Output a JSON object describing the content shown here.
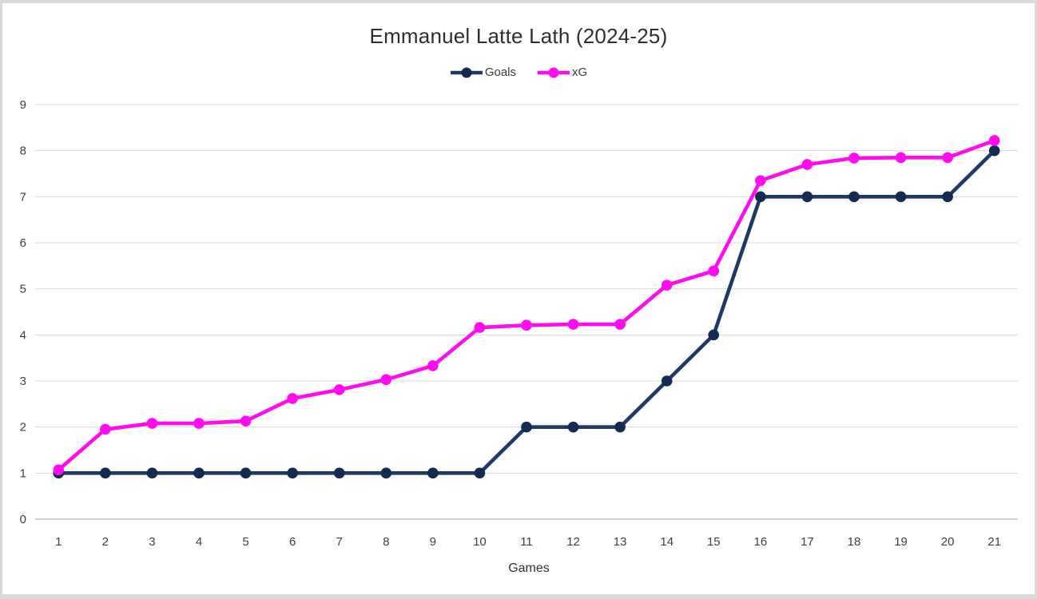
{
  "chart_data": {
    "type": "line",
    "title": "Emmanuel Latte Lath (2024-25)",
    "xlabel": "Games",
    "ylabel": "",
    "categories": [
      1,
      2,
      3,
      4,
      5,
      6,
      7,
      8,
      9,
      10,
      11,
      12,
      13,
      14,
      15,
      16,
      17,
      18,
      19,
      20,
      21
    ],
    "series": [
      {
        "name": "Goals",
        "color": "#1f3864",
        "marker_color": "#152a50",
        "values": [
          1,
          1,
          1,
          1,
          1,
          1,
          1,
          1,
          1,
          1,
          2,
          2,
          2,
          3,
          4,
          7,
          7,
          7,
          7,
          7,
          8
        ]
      },
      {
        "name": "xG",
        "color": "#ff0cee",
        "marker_color": "#ff0cee",
        "values": [
          1.07,
          1.95,
          2.08,
          2.08,
          2.13,
          2.62,
          2.81,
          3.03,
          3.33,
          4.16,
          4.21,
          4.23,
          4.23,
          5.08,
          5.39,
          7.35,
          7.7,
          7.84,
          7.85,
          7.85,
          8.22
        ]
      }
    ],
    "ylim": [
      0,
      9
    ],
    "yticks": [
      0,
      1,
      2,
      3,
      4,
      5,
      6,
      7,
      8,
      9
    ],
    "grid": true,
    "legend_position": "top"
  },
  "colors": {
    "background": "#ffffff",
    "frame_border": "#d9d9d9",
    "gridline": "#d9d9d9",
    "axis_line": "#c0c0c0",
    "tick_text": "#404040",
    "title_text": "#2e2e2e"
  }
}
